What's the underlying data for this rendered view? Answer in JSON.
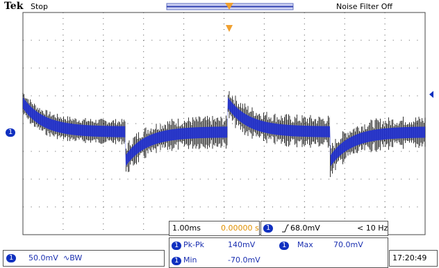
{
  "header": {
    "brand": "Tek",
    "status": "Stop",
    "noise_filter": "Noise Filter Off"
  },
  "channel": {
    "number": "1",
    "scale": "50.0mV",
    "bandwidth": "∿BW"
  },
  "horizontal": {
    "timebase": "1.00ms",
    "position": "0.00000 s"
  },
  "trigger": {
    "channel": "1",
    "level": "68.0mV",
    "frequency": "< 10 Hz"
  },
  "measurements": [
    {
      "channel": "1",
      "label": "Pk-Pk",
      "value": "140mV"
    },
    {
      "channel": "1",
      "label": "Max",
      "value": "70.0mV"
    },
    {
      "channel": "1",
      "label": "Min",
      "value": "-70.0mV"
    }
  ],
  "clock": "17:20:49"
}
